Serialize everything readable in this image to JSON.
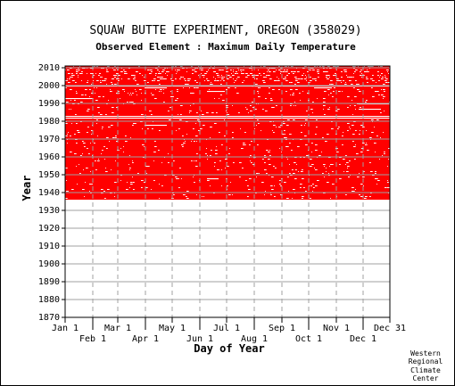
{
  "chart_data": {
    "type": "heatmap",
    "title": "SQUAW BUTTE EXPERIMENT, OREGON   (358029)",
    "subtitle": "Observed Element : Maximum Daily Temperature",
    "xlabel": "Day of Year",
    "ylabel": "Year",
    "x_ticks_upper": [
      "Jan 1",
      "Mar 1",
      "May 1",
      "Jul 1",
      "Sep 1",
      "Nov 1",
      "Dec 31"
    ],
    "x_ticks_lower": [
      "Feb 1",
      "Apr 1",
      "Jun 1",
      "Aug 1",
      "Oct 1",
      "Dec 1"
    ],
    "x_tick_days_upper": [
      1,
      60,
      121,
      182,
      244,
      305,
      365
    ],
    "x_tick_days_lower": [
      32,
      91,
      152,
      213,
      274,
      335
    ],
    "y_ticks": [
      1870,
      1880,
      1890,
      1900,
      1910,
      1920,
      1930,
      1940,
      1950,
      1960,
      1970,
      1980,
      1990,
      2000,
      2010
    ],
    "xlim": [
      1,
      365
    ],
    "ylim": [
      1870,
      2011
    ],
    "data_years": [
      1937,
      2011
    ],
    "data_color": "#ff0000",
    "grid": true,
    "notable_gaps": [
      {
        "year": 1983,
        "day_start": 1,
        "day_end": 365
      },
      {
        "year": 1982,
        "day_start": 1,
        "day_end": 365
      },
      {
        "year": 1993,
        "day_start": 1,
        "day_end": 30
      },
      {
        "year": 1999,
        "day_start": 90,
        "day_end": 115
      },
      {
        "year": 1997,
        "day_start": 160,
        "day_end": 180
      },
      {
        "year": 1999,
        "day_start": 280,
        "day_end": 300
      },
      {
        "year": 1990,
        "day_start": 330,
        "day_end": 365
      },
      {
        "year": 1987,
        "day_start": 330,
        "day_end": 355
      },
      {
        "year": 1978,
        "day_start": 90,
        "day_end": 115
      },
      {
        "year": 1948,
        "day_start": 160,
        "day_end": 173
      },
      {
        "year": 2000,
        "day_start": 210,
        "day_end": 230
      },
      {
        "year": 2000,
        "day_start": 1,
        "day_end": 365
      }
    ]
  },
  "credit": [
    "Western",
    "Regional",
    "Climate",
    "Center"
  ]
}
